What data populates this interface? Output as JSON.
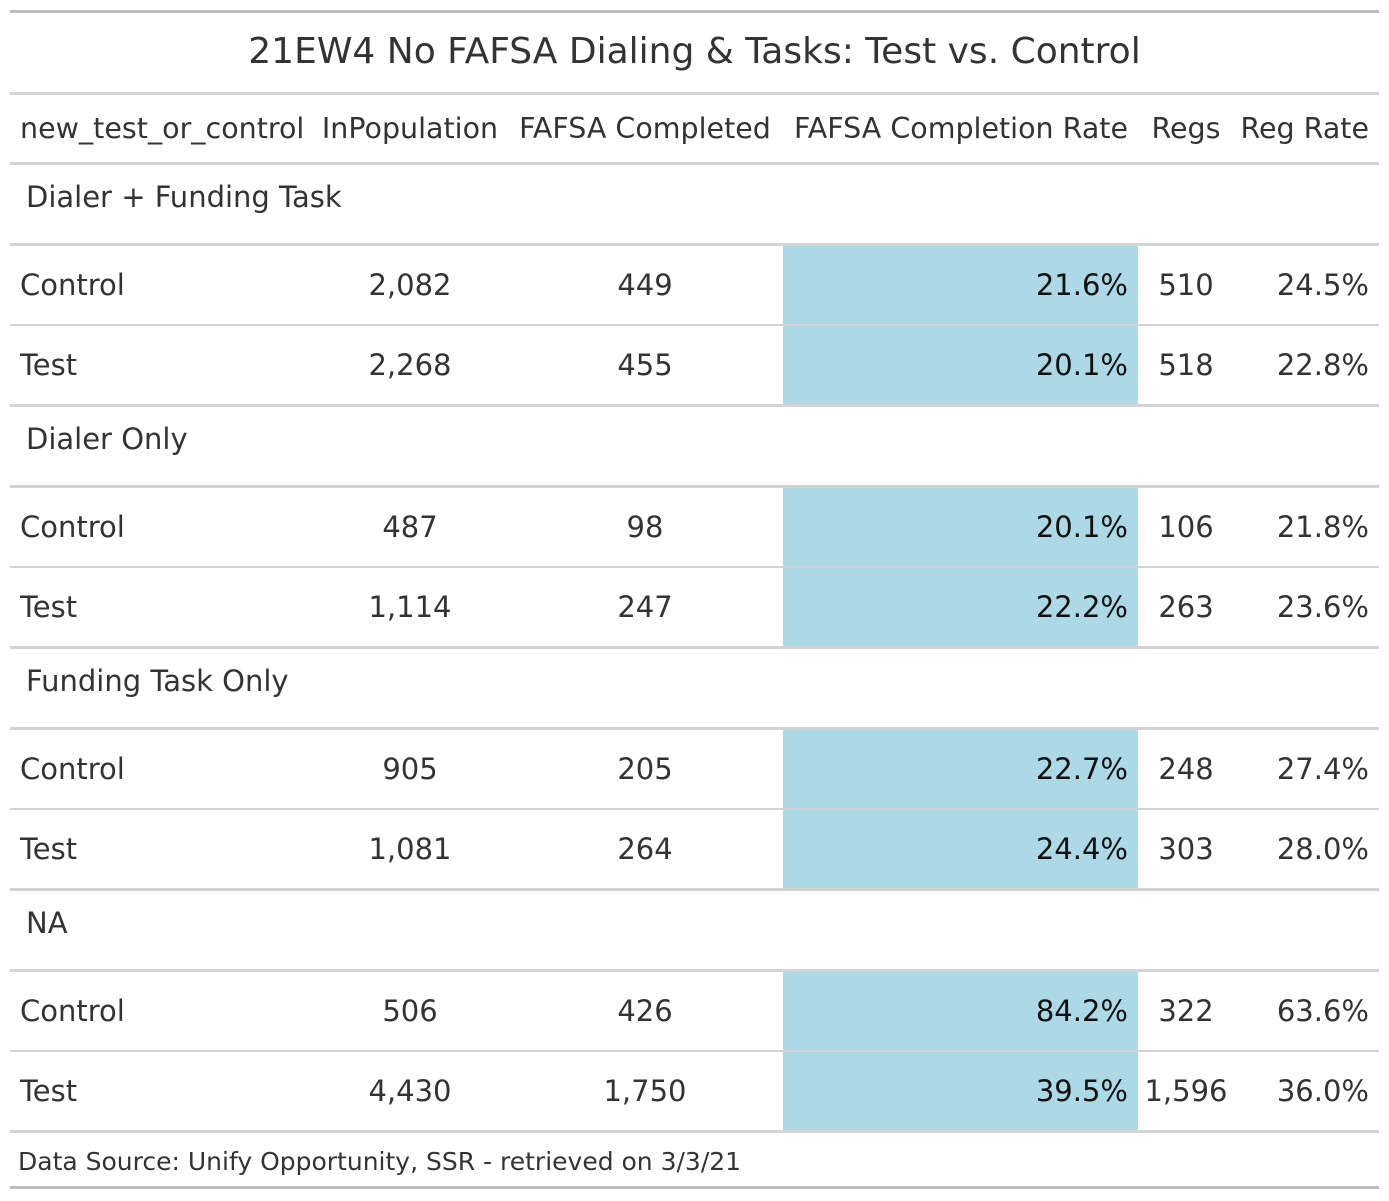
{
  "chart_data": {
    "type": "table",
    "title": "21EW4 No FAFSA Dialing & Tasks: Test vs. Control",
    "columns": [
      "new_test_or_control",
      "InPopulation",
      "FAFSA Completed",
      "FAFSA Completion Rate",
      "Regs",
      "Reg Rate"
    ],
    "highlight_column": "FAFSA Completion Rate",
    "highlight_color": "#add8e6",
    "groups": [
      {
        "label": "Dialer + Funding Task",
        "rows": [
          [
            "Control",
            "2,082",
            "449",
            "21.6%",
            "510",
            "24.5%"
          ],
          [
            "Test",
            "2,268",
            "455",
            "20.1%",
            "518",
            "22.8%"
          ]
        ]
      },
      {
        "label": "Dialer Only",
        "rows": [
          [
            "Control",
            "487",
            "98",
            "20.1%",
            "106",
            "21.8%"
          ],
          [
            "Test",
            "1,114",
            "247",
            "22.2%",
            "263",
            "23.6%"
          ]
        ]
      },
      {
        "label": "Funding Task Only",
        "rows": [
          [
            "Control",
            "905",
            "205",
            "22.7%",
            "248",
            "27.4%"
          ],
          [
            "Test",
            "1,081",
            "264",
            "24.4%",
            "303",
            "28.0%"
          ]
        ]
      },
      {
        "label": "NA",
        "rows": [
          [
            "Control",
            "506",
            "426",
            "84.2%",
            "322",
            "63.6%"
          ],
          [
            "Test",
            "4,430",
            "1,750",
            "39.5%",
            "1,596",
            "36.0%"
          ]
        ]
      }
    ],
    "source_note": "Data Source: Unify Opportunity, SSR - retrieved on 3/3/21"
  }
}
